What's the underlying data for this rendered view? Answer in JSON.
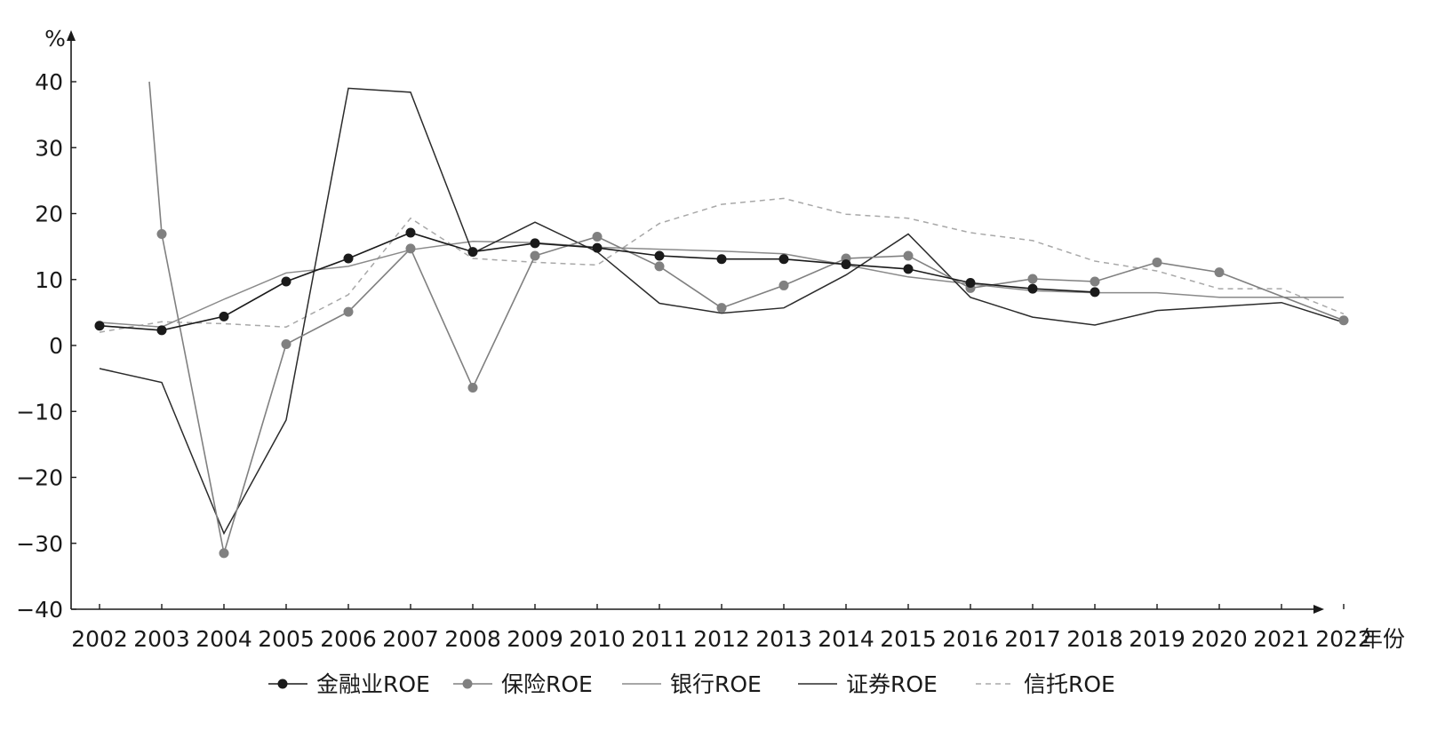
{
  "chart_data": {
    "type": "line",
    "y_unit": "%",
    "x_unit": "年份",
    "ylim": [
      -40,
      40
    ],
    "yticks": [
      -40,
      -30,
      -20,
      -10,
      0,
      10,
      20,
      30,
      40
    ],
    "ytick_labels": [
      "−40",
      "−30",
      "−20",
      "−10",
      "0",
      "10",
      "20",
      "30",
      "40"
    ],
    "categories": [
      "2002",
      "2003",
      "2004",
      "2005",
      "2006",
      "2007",
      "2008",
      "2009",
      "2010",
      "2011",
      "2012",
      "2013",
      "2014",
      "2015",
      "2016",
      "2017",
      "2018",
      "2019",
      "2020",
      "2021",
      "2022"
    ],
    "grid": false,
    "legend_position": "bottom",
    "series": [
      {
        "name": "金融业ROE",
        "style": "solid-marker",
        "color": "#1a1a1a",
        "values": [
          3.0,
          2.3,
          4.4,
          9.7,
          13.2,
          17.1,
          14.2,
          15.5,
          14.8,
          13.6,
          13.1,
          13.1,
          12.3,
          11.6,
          9.5,
          8.6,
          8.1,
          null,
          null,
          null,
          null
        ]
      },
      {
        "name": "保险ROE",
        "style": "solid-marker",
        "color": "#808080",
        "values": [
          null,
          16.9,
          -31.5,
          0.2,
          5.1,
          14.7,
          -6.4,
          13.6,
          16.5,
          12.0,
          5.7,
          9.1,
          13.2,
          13.6,
          8.7,
          10.1,
          9.7,
          12.6,
          11.1,
          null,
          3.8
        ]
      },
      {
        "name": "银行ROE",
        "style": "solid",
        "color": "#8a8a8a",
        "values": [
          3.5,
          2.8,
          7.0,
          11.0,
          12.0,
          14.5,
          15.8,
          15.6,
          14.9,
          14.6,
          14.3,
          13.9,
          12.2,
          10.4,
          9.3,
          8.3,
          8.0,
          8.0,
          7.3,
          7.3,
          7.3
        ]
      },
      {
        "name": "证券ROE",
        "style": "solid",
        "color": "#2b2b2b",
        "values": [
          -3.5,
          -5.6,
          -28.5,
          -11.3,
          39.0,
          38.4,
          14.0,
          18.7,
          14.2,
          6.4,
          4.9,
          5.7,
          10.7,
          16.9,
          7.3,
          4.3,
          3.1,
          5.3,
          5.9,
          6.5,
          3.5
        ]
      },
      {
        "name": "信托ROE",
        "style": "dashed",
        "color": "#a8a8a8",
        "values": [
          2.0,
          3.6,
          3.3,
          2.8,
          7.7,
          19.3,
          13.2,
          12.6,
          12.2,
          18.5,
          21.4,
          22.3,
          19.9,
          19.3,
          17.1,
          15.9,
          12.8,
          11.3,
          8.6,
          8.6,
          4.8
        ]
      }
    ],
    "insurance_2003_line_start": 40
  },
  "colors": {
    "axis": "#1a1a1a",
    "finance": "#1a1a1a",
    "insurance": "#808080",
    "bank": "#8a8a8a",
    "securities": "#2b2b2b",
    "trust": "#a8a8a8"
  }
}
